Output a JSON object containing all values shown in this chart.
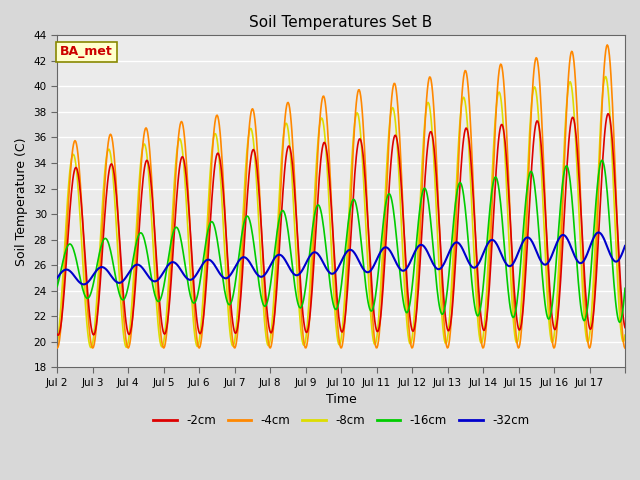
{
  "title": "Soil Temperatures Set B",
  "xlabel": "Time",
  "ylabel": "Soil Temperature (C)",
  "ylim": [
    18,
    44
  ],
  "yticks": [
    18,
    20,
    22,
    24,
    26,
    28,
    30,
    32,
    34,
    36,
    38,
    40,
    42,
    44
  ],
  "xtick_labels": [
    "Jul 2",
    "Jul 3",
    "Jul 4",
    "Jul 5",
    "Jul 6",
    "Jul 7",
    "Jul 8",
    "Jul 9",
    "Jul 10",
    "Jul 11",
    "Jul 12",
    "Jul 13",
    "Jul 14",
    "Jul 15",
    "Jul 16",
    "Jul 17"
  ],
  "annotation_text": "BA_met",
  "annotation_bg": "#ffffcc",
  "annotation_border": "#888800",
  "annotation_text_color": "#cc0000",
  "bg_color": "#d8d8d8",
  "plot_bg": "#ebebeb",
  "grid_color": "#ffffff",
  "series": {
    "-2cm": {
      "color": "#dd0000",
      "lw": 1.2
    },
    "-4cm": {
      "color": "#ff8800",
      "lw": 1.2
    },
    "-8cm": {
      "color": "#dddd00",
      "lw": 1.2
    },
    "-16cm": {
      "color": "#00cc00",
      "lw": 1.2
    },
    "-32cm": {
      "color": "#0000cc",
      "lw": 1.5
    }
  },
  "legend_order": [
    "-2cm",
    "-4cm",
    "-8cm",
    "-16cm",
    "-32cm"
  ]
}
